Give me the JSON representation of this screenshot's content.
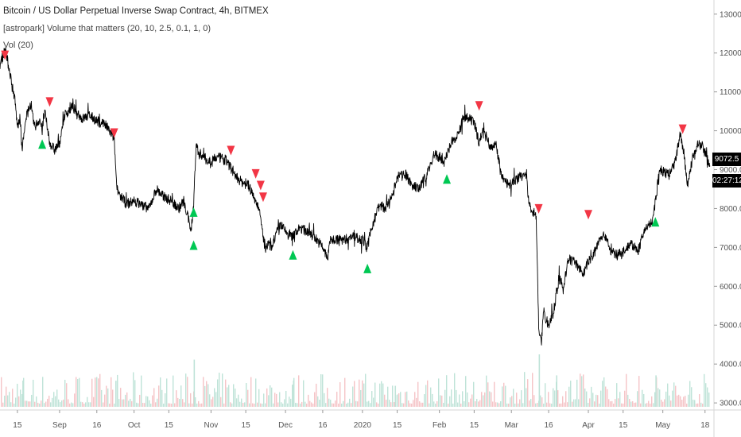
{
  "legend": {
    "title": "Bitcoin / US Dollar Perpetual Inverse Swap Contract, 4h, BITMEX",
    "indicator": "[astropark] Volume that matters (20, 10, 2.5, 0.1, 1, 0)",
    "volume": "Vol (20)"
  },
  "price_badge": "9072.5",
  "countdown_badge": "02:27:12",
  "colors": {
    "background": "#ffffff",
    "price_line": "#000000",
    "signal_up": "#00c853",
    "signal_down": "#f23645",
    "volume_up": "#bfe3d8",
    "volume_down": "#f5c4c7",
    "badge": "#000000"
  },
  "chart_data": {
    "type": "line",
    "symbol": "XBTUSD",
    "exchange": "BITMEX",
    "interval": "4h",
    "y_axis": {
      "ylim": [
        2900,
        13200
      ],
      "ticks": [
        "3000.0",
        "4000.0",
        "5000.0",
        "6000.0",
        "7000.0",
        "8000.0",
        "9000.0",
        "10000.0",
        "11000.0",
        "12000.0",
        "13000.0"
      ]
    },
    "x_axis": {
      "xlim": [
        "2019-08-08",
        "2020-05-20"
      ],
      "ticks": [
        {
          "date": "2019-08-15",
          "label": "15"
        },
        {
          "date": "2019-09-01",
          "label": "Sep"
        },
        {
          "date": "2019-09-16",
          "label": "16"
        },
        {
          "date": "2019-10-01",
          "label": "Oct"
        },
        {
          "date": "2019-10-15",
          "label": "15"
        },
        {
          "date": "2019-11-01",
          "label": "Nov"
        },
        {
          "date": "2019-11-15",
          "label": "15"
        },
        {
          "date": "2019-12-01",
          "label": "Dec"
        },
        {
          "date": "2019-12-16",
          "label": "16"
        },
        {
          "date": "2020-01-01",
          "label": "2020"
        },
        {
          "date": "2020-01-15",
          "label": "15"
        },
        {
          "date": "2020-02-01",
          "label": "Feb"
        },
        {
          "date": "2020-02-15",
          "label": "15"
        },
        {
          "date": "2020-03-01",
          "label": "Mar"
        },
        {
          "date": "2020-03-16",
          "label": "16"
        },
        {
          "date": "2020-04-01",
          "label": "Apr"
        },
        {
          "date": "2020-04-15",
          "label": "15"
        },
        {
          "date": "2020-05-01",
          "label": "May"
        },
        {
          "date": "2020-05-18",
          "label": "18"
        }
      ]
    },
    "price_series": {
      "name": "",
      "points": [
        [
          "2019-08-08",
          11700
        ],
        [
          "2019-08-10",
          12100
        ],
        [
          "2019-08-12",
          11500
        ],
        [
          "2019-08-14",
          10800
        ],
        [
          "2019-08-15",
          10100
        ],
        [
          "2019-08-16",
          10300
        ],
        [
          "2019-08-17",
          9600
        ],
        [
          "2019-08-19",
          10500
        ],
        [
          "2019-08-20",
          10700
        ],
        [
          "2019-08-22",
          10100
        ],
        [
          "2019-08-24",
          10300
        ],
        [
          "2019-08-25",
          10000
        ],
        [
          "2019-08-26",
          10500
        ],
        [
          "2019-08-28",
          9700
        ],
        [
          "2019-08-30",
          9500
        ],
        [
          "2019-09-01",
          9700
        ],
        [
          "2019-09-03",
          10400
        ],
        [
          "2019-09-06",
          10600
        ],
        [
          "2019-09-08",
          10500
        ],
        [
          "2019-09-10",
          10300
        ],
        [
          "2019-09-13",
          10400
        ],
        [
          "2019-09-16",
          10250
        ],
        [
          "2019-09-19",
          10200
        ],
        [
          "2019-09-21",
          10000
        ],
        [
          "2019-09-23",
          9800
        ],
        [
          "2019-09-24",
          8500
        ],
        [
          "2019-09-25",
          8400
        ],
        [
          "2019-09-28",
          8100
        ],
        [
          "2019-10-01",
          8200
        ],
        [
          "2019-10-04",
          8100
        ],
        [
          "2019-10-07",
          8000
        ],
        [
          "2019-10-10",
          8500
        ],
        [
          "2019-10-13",
          8300
        ],
        [
          "2019-10-16",
          8200
        ],
        [
          "2019-10-19",
          8000
        ],
        [
          "2019-10-21",
          8200
        ],
        [
          "2019-10-23",
          7700
        ],
        [
          "2019-10-24",
          7450
        ],
        [
          "2019-10-25",
          8100
        ],
        [
          "2019-10-26",
          9700
        ],
        [
          "2019-10-27",
          9400
        ],
        [
          "2019-10-28",
          9400
        ],
        [
          "2019-10-31",
          9200
        ],
        [
          "2019-11-02",
          9300
        ],
        [
          "2019-11-05",
          9300
        ],
        [
          "2019-11-08",
          9200
        ],
        [
          "2019-11-10",
          8900
        ],
        [
          "2019-11-13",
          8700
        ],
        [
          "2019-11-16",
          8600
        ],
        [
          "2019-11-19",
          8200
        ],
        [
          "2019-11-20",
          8100
        ],
        [
          "2019-11-21",
          7700
        ],
        [
          "2019-11-22",
          7300
        ],
        [
          "2019-11-23",
          6900
        ],
        [
          "2019-11-24",
          7100
        ],
        [
          "2019-11-25",
          7000
        ],
        [
          "2019-11-27",
          7300
        ],
        [
          "2019-11-29",
          7600
        ],
        [
          "2019-12-01",
          7400
        ],
        [
          "2019-12-04",
          7300
        ],
        [
          "2019-12-07",
          7500
        ],
        [
          "2019-12-10",
          7400
        ],
        [
          "2019-12-13",
          7250
        ],
        [
          "2019-12-16",
          7000
        ],
        [
          "2019-12-18",
          6700
        ],
        [
          "2019-12-19",
          7200
        ],
        [
          "2019-12-22",
          7200
        ],
        [
          "2019-12-25",
          7200
        ],
        [
          "2019-12-28",
          7300
        ],
        [
          "2020-01-01",
          7200
        ],
        [
          "2020-01-03",
          7000
        ],
        [
          "2020-01-04",
          7300
        ],
        [
          "2020-01-06",
          7800
        ],
        [
          "2020-01-08",
          8100
        ],
        [
          "2020-01-10",
          8000
        ],
        [
          "2020-01-13",
          8300
        ],
        [
          "2020-01-15",
          8800
        ],
        [
          "2020-01-18",
          8900
        ],
        [
          "2020-01-21",
          8600
        ],
        [
          "2020-01-24",
          8500
        ],
        [
          "2020-01-27",
          8900
        ],
        [
          "2020-01-30",
          9400
        ],
        [
          "2020-02-01",
          9300
        ],
        [
          "2020-02-03",
          9200
        ],
        [
          "2020-02-06",
          9700
        ],
        [
          "2020-02-09",
          10000
        ],
        [
          "2020-02-11",
          10400
        ],
        [
          "2020-02-13",
          10300
        ],
        [
          "2020-02-15",
          10200
        ],
        [
          "2020-02-17",
          9700
        ],
        [
          "2020-02-19",
          10100
        ],
        [
          "2020-02-21",
          9650
        ],
        [
          "2020-02-24",
          9600
        ],
        [
          "2020-02-26",
          8800
        ],
        [
          "2020-02-29",
          8600
        ],
        [
          "2020-03-02",
          8700
        ],
        [
          "2020-03-04",
          8800
        ],
        [
          "2020-03-07",
          8900
        ],
        [
          "2020-03-08",
          8100
        ],
        [
          "2020-03-10",
          7900
        ],
        [
          "2020-03-11",
          7800
        ],
        [
          "2020-03-12",
          5000
        ],
        [
          "2020-03-13",
          4500
        ],
        [
          "2020-03-14",
          5300
        ],
        [
          "2020-03-16",
          5000
        ],
        [
          "2020-03-18",
          5350
        ],
        [
          "2020-03-20",
          6200
        ],
        [
          "2020-03-22",
          6000
        ],
        [
          "2020-03-24",
          6700
        ],
        [
          "2020-03-27",
          6600
        ],
        [
          "2020-03-30",
          6300
        ],
        [
          "2020-04-01",
          6650
        ],
        [
          "2020-04-03",
          6800
        ],
        [
          "2020-04-06",
          7300
        ],
        [
          "2020-04-08",
          7300
        ],
        [
          "2020-04-10",
          6900
        ],
        [
          "2020-04-13",
          6800
        ],
        [
          "2020-04-15",
          6900
        ],
        [
          "2020-04-18",
          7100
        ],
        [
          "2020-04-21",
          6900
        ],
        [
          "2020-04-24",
          7500
        ],
        [
          "2020-04-27",
          7700
        ],
        [
          "2020-04-29",
          8700
        ],
        [
          "2020-04-30",
          9000
        ],
        [
          "2020-05-02",
          8900
        ],
        [
          "2020-05-04",
          8900
        ],
        [
          "2020-05-06",
          9200
        ],
        [
          "2020-05-08",
          9900
        ],
        [
          "2020-05-09",
          9600
        ],
        [
          "2020-05-11",
          8600
        ],
        [
          "2020-05-13",
          9300
        ],
        [
          "2020-05-15",
          9700
        ],
        [
          "2020-05-17",
          9600
        ],
        [
          "2020-05-19",
          9300
        ],
        [
          "2020-05-20",
          9100
        ]
      ]
    },
    "signals": {
      "sell": [
        {
          "date": "2019-08-10",
          "price": 11900
        },
        {
          "date": "2019-08-28",
          "price": 10700
        },
        {
          "date": "2019-09-23",
          "price": 9900
        },
        {
          "date": "2019-11-09",
          "price": 9450
        },
        {
          "date": "2019-11-19",
          "price": 8850
        },
        {
          "date": "2019-11-21",
          "price": 8550
        },
        {
          "date": "2019-11-22",
          "price": 8250
        },
        {
          "date": "2020-02-17",
          "price": 10600
        },
        {
          "date": "2020-03-12",
          "price": 7950
        },
        {
          "date": "2020-04-01",
          "price": 7800
        },
        {
          "date": "2020-05-09",
          "price": 10000
        }
      ],
      "buy": [
        {
          "date": "2019-08-25",
          "price": 9700
        },
        {
          "date": "2019-10-25",
          "price": 7950
        },
        {
          "date": "2019-10-25",
          "price": 7100
        },
        {
          "date": "2019-12-04",
          "price": 6850
        },
        {
          "date": "2020-01-03",
          "price": 6500
        },
        {
          "date": "2020-02-04",
          "price": 8800
        },
        {
          "date": "2020-04-28",
          "price": 7700
        }
      ]
    },
    "volume_spikes": [
      {
        "date": "2019-10-25",
        "height": 0.09
      },
      {
        "date": "2019-12-04",
        "height": 0.05
      },
      {
        "date": "2020-03-12",
        "height": 0.1
      },
      {
        "date": "2020-04-28",
        "height": 0.06
      },
      {
        "date": "2019-09-24",
        "height": 0.05
      },
      {
        "date": "2019-08-17",
        "height": 0.05
      },
      {
        "date": "2020-01-14",
        "height": 0.04
      },
      {
        "date": "2020-03-19",
        "height": 0.06
      }
    ]
  }
}
